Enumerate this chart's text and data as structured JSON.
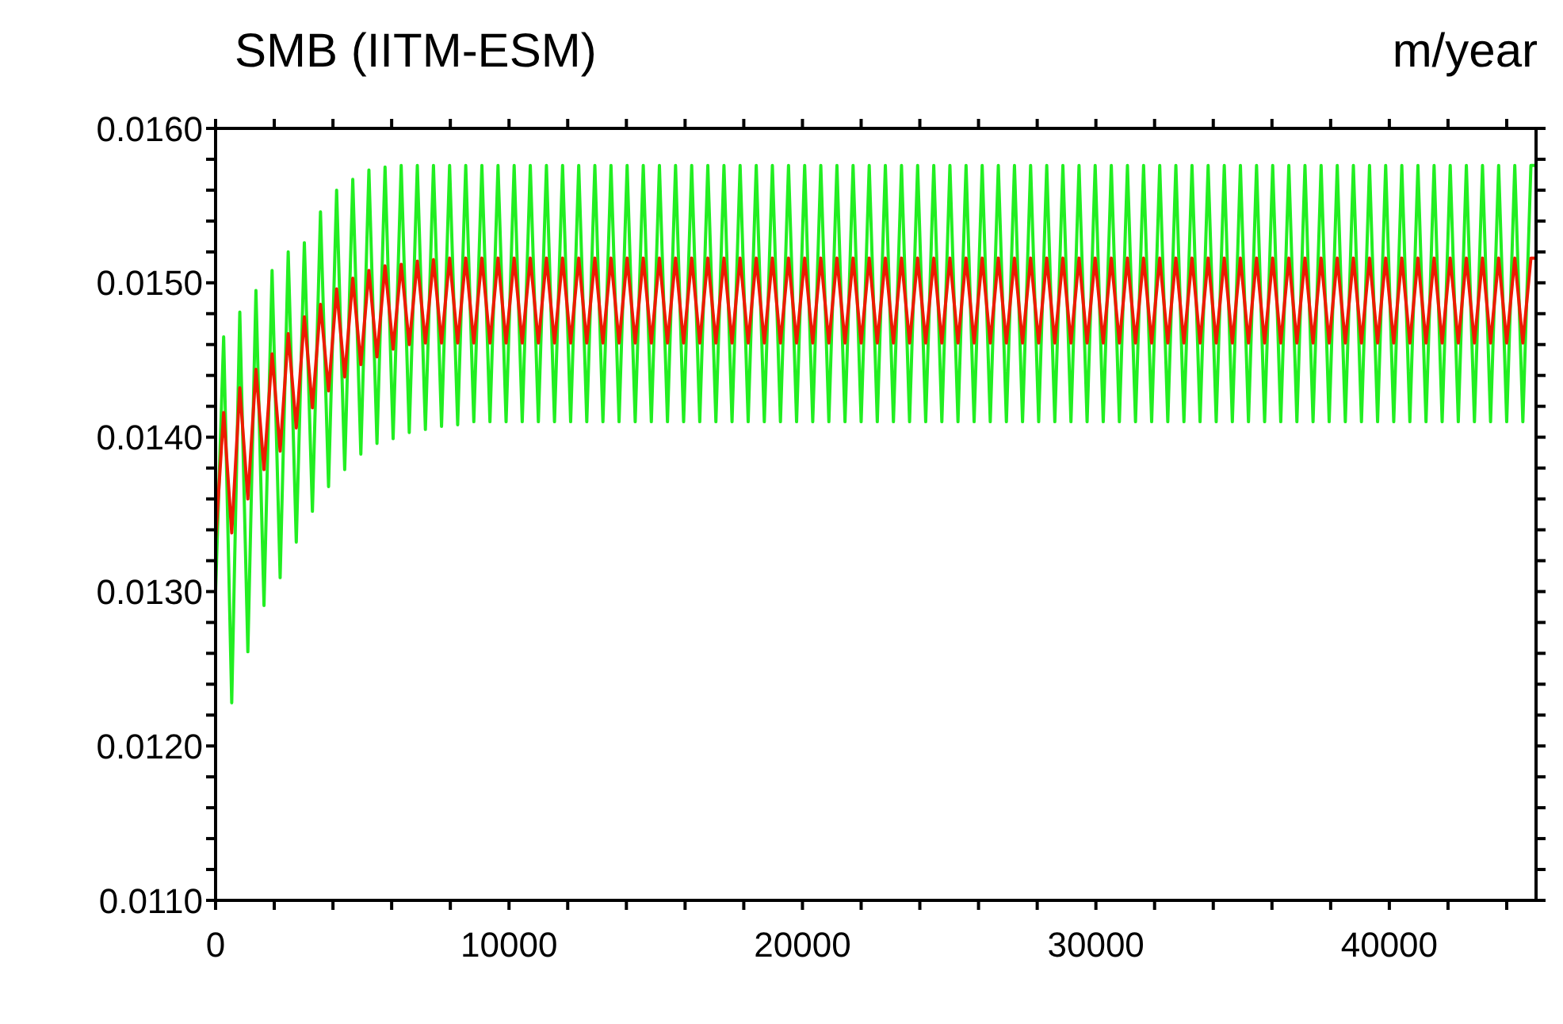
{
  "chart_data": {
    "type": "line",
    "title": "SMB (IITM-ESM)",
    "annotations": [
      "m/year"
    ],
    "xlim": [
      0,
      45000
    ],
    "ylim": [
      0.011,
      0.016
    ],
    "xticks": [
      0,
      {
        "value": 2000,
        "label": null
      },
      {
        "value": 4000,
        "label": null
      },
      {
        "value": 6000,
        "label": null
      },
      {
        "value": 8000,
        "label": null
      },
      10000,
      {
        "value": 12000,
        "label": null
      },
      {
        "value": 14000,
        "label": null
      },
      {
        "value": 16000,
        "label": null
      },
      {
        "value": 18000,
        "label": null
      },
      20000,
      {
        "value": 22000,
        "label": null
      },
      {
        "value": 24000,
        "label": null
      },
      {
        "value": 26000,
        "label": null
      },
      {
        "value": 28000,
        "label": null
      },
      30000,
      {
        "value": 32000,
        "label": null
      },
      {
        "value": 34000,
        "label": null
      },
      {
        "value": 36000,
        "label": null
      },
      {
        "value": 38000,
        "label": null
      },
      40000,
      {
        "value": 42000,
        "label": null
      },
      {
        "value": 44000,
        "label": null
      }
    ],
    "yticks": [
      {
        "value": 0.011,
        "label": "0.0110"
      },
      {
        "value": 0.0112,
        "label": null
      },
      {
        "value": 0.0114,
        "label": null
      },
      {
        "value": 0.0116,
        "label": null
      },
      {
        "value": 0.0118,
        "label": null
      },
      {
        "value": 0.012,
        "label": "0.0120"
      },
      {
        "value": 0.0122,
        "label": null
      },
      {
        "value": 0.0124,
        "label": null
      },
      {
        "value": 0.0126,
        "label": null
      },
      {
        "value": 0.0128,
        "label": null
      },
      {
        "value": 0.013,
        "label": "0.0130"
      },
      {
        "value": 0.0132,
        "label": null
      },
      {
        "value": 0.0134,
        "label": null
      },
      {
        "value": 0.0136,
        "label": null
      },
      {
        "value": 0.0138,
        "label": null
      },
      {
        "value": 0.014,
        "label": "0.0140"
      },
      {
        "value": 0.0142,
        "label": null
      },
      {
        "value": 0.0144,
        "label": null
      },
      {
        "value": 0.0146,
        "label": null
      },
      {
        "value": 0.0148,
        "label": null
      },
      {
        "value": 0.015,
        "label": "0.0150"
      },
      {
        "value": 0.0152,
        "label": null
      },
      {
        "value": 0.0154,
        "label": null
      },
      {
        "value": 0.0156,
        "label": null
      },
      {
        "value": 0.0158,
        "label": null
      },
      {
        "value": 0.016,
        "label": "0.0160"
      }
    ],
    "marker": "none",
    "line_style": "solid",
    "x": [
      0,
      275,
      550,
      825,
      1100,
      1375,
      1650,
      1925,
      2200,
      2475,
      2750,
      3025,
      3300,
      3575,
      3850,
      4125,
      4400,
      4675,
      4950,
      5225,
      5500,
      5775,
      6050,
      6325,
      6600,
      6875,
      7150,
      7425,
      7700,
      7975,
      8250,
      8525,
      8800,
      9075,
      9350,
      9625,
      9900,
      10175,
      10450,
      10725,
      11000,
      11275,
      11550,
      11825,
      12100,
      12375,
      12650,
      12925,
      13200,
      13475,
      13750,
      14025,
      14300,
      14575,
      14850,
      15125,
      15400,
      15675,
      15950,
      16225,
      16500,
      16775,
      17050,
      17325,
      17600,
      17875,
      18150,
      18425,
      18700,
      18975,
      19250,
      19525,
      19800,
      20075,
      20350,
      20625,
      20900,
      21175,
      21450,
      21725,
      22000,
      22275,
      22550,
      22825,
      23100,
      23375,
      23650,
      23925,
      24200,
      24475,
      24750,
      25025,
      25300,
      25575,
      25850,
      26125,
      26400,
      26675,
      26950,
      27225,
      27500,
      27775,
      28050,
      28325,
      28600,
      28875,
      29150,
      29425,
      29700,
      29975,
      30250,
      30525,
      30800,
      31075,
      31350,
      31625,
      31900,
      32175,
      32450,
      32725,
      33000,
      33275,
      33550,
      33825,
      34100,
      34375,
      34650,
      34925,
      35200,
      35475,
      35750,
      36025,
      36300,
      36575,
      36850,
      37125,
      37400,
      37675,
      37950,
      38225,
      38500,
      38775,
      39050,
      39325,
      39600,
      39875,
      40150,
      40425,
      40700,
      40975,
      41250,
      41525,
      41800,
      42075,
      42350,
      42625,
      42900,
      43175,
      43450,
      43725,
      44000,
      44275,
      44550,
      44825,
      45000
    ],
    "series": [
      {
        "color": "#22ee22",
        "values": [
          0.013,
          0.01465,
          0.01228,
          0.01481,
          0.01261,
          0.01495,
          0.01291,
          0.01508,
          0.01309,
          0.0152,
          0.01332,
          0.01526,
          0.01352,
          0.01546,
          0.01368,
          0.0156,
          0.01379,
          0.01567,
          0.01389,
          0.01573,
          0.01396,
          0.01575,
          0.01399,
          0.01576,
          0.01403,
          0.01576,
          0.01405,
          0.01576,
          0.01407,
          0.01576,
          0.01408,
          0.01576,
          0.0141,
          0.01576,
          0.0141,
          0.01576,
          0.0141,
          0.01576,
          0.0141,
          0.01576,
          0.0141,
          0.01576,
          0.0141,
          0.01576,
          0.0141,
          0.01576,
          0.0141,
          0.01576,
          0.0141,
          0.01576,
          0.0141,
          0.01576,
          0.0141,
          0.01576,
          0.0141,
          0.01576,
          0.0141,
          0.01576,
          0.0141,
          0.01576,
          0.0141,
          0.01576,
          0.0141,
          0.01576,
          0.0141,
          0.01576,
          0.0141,
          0.01576,
          0.0141,
          0.01576,
          0.0141,
          0.01576,
          0.0141,
          0.01576,
          0.0141,
          0.01576,
          0.0141,
          0.01576,
          0.0141,
          0.01576,
          0.0141,
          0.01576,
          0.0141,
          0.01576,
          0.0141,
          0.01576,
          0.0141,
          0.01576,
          0.0141,
          0.01576,
          0.0141,
          0.01576,
          0.0141,
          0.01576,
          0.0141,
          0.01576,
          0.0141,
          0.01576,
          0.0141,
          0.01576,
          0.0141,
          0.01576,
          0.0141,
          0.01576,
          0.0141,
          0.01576,
          0.0141,
          0.01576,
          0.0141,
          0.01576,
          0.0141,
          0.01576,
          0.0141,
          0.01576,
          0.0141,
          0.01576,
          0.0141,
          0.01576,
          0.0141,
          0.01576,
          0.0141,
          0.01576,
          0.0141,
          0.01576,
          0.0141,
          0.01576,
          0.0141,
          0.01576,
          0.0141,
          0.01576,
          0.0141,
          0.01576,
          0.0141,
          0.01576,
          0.0141,
          0.01576,
          0.0141,
          0.01576,
          0.0141,
          0.01576,
          0.0141,
          0.01576,
          0.0141,
          0.01576,
          0.0141,
          0.01576,
          0.0141,
          0.01576,
          0.0141,
          0.01576,
          0.0141,
          0.01576,
          0.0141,
          0.01576,
          0.0141,
          0.01576,
          0.0141,
          0.01576,
          0.0141,
          0.01576,
          0.0141,
          0.01576,
          0.0141,
          0.01576,
          0.01576
        ]
      },
      {
        "color": "#ee1a00",
        "values": [
          0.01333,
          0.01416,
          0.01338,
          0.01432,
          0.0136,
          0.01444,
          0.01379,
          0.01454,
          0.01391,
          0.01467,
          0.01406,
          0.01478,
          0.01419,
          0.01486,
          0.0143,
          0.01496,
          0.01439,
          0.01503,
          0.01447,
          0.01508,
          0.01452,
          0.01511,
          0.01457,
          0.01512,
          0.0146,
          0.01514,
          0.01461,
          0.01515,
          0.01461,
          0.01516,
          0.01461,
          0.01516,
          0.01461,
          0.01516,
          0.01461,
          0.01516,
          0.01461,
          0.01516,
          0.01461,
          0.01516,
          0.01461,
          0.01516,
          0.01461,
          0.01516,
          0.01461,
          0.01516,
          0.01461,
          0.01516,
          0.01461,
          0.01516,
          0.01461,
          0.01516,
          0.01461,
          0.01516,
          0.01461,
          0.01516,
          0.01461,
          0.01516,
          0.01461,
          0.01516,
          0.01461,
          0.01516,
          0.01461,
          0.01516,
          0.01461,
          0.01516,
          0.01461,
          0.01516,
          0.01461,
          0.01516,
          0.01461,
          0.01516,
          0.01461,
          0.01516,
          0.01461,
          0.01516,
          0.01461,
          0.01516,
          0.01461,
          0.01516,
          0.01461,
          0.01516,
          0.01461,
          0.01516,
          0.01461,
          0.01516,
          0.01461,
          0.01516,
          0.01461,
          0.01516,
          0.01461,
          0.01516,
          0.01461,
          0.01516,
          0.01461,
          0.01516,
          0.01461,
          0.01516,
          0.01461,
          0.01516,
          0.01461,
          0.01516,
          0.01461,
          0.01516,
          0.01461,
          0.01516,
          0.01461,
          0.01516,
          0.01461,
          0.01516,
          0.01461,
          0.01516,
          0.01461,
          0.01516,
          0.01461,
          0.01516,
          0.01461,
          0.01516,
          0.01461,
          0.01516,
          0.01461,
          0.01516,
          0.01461,
          0.01516,
          0.01461,
          0.01516,
          0.01461,
          0.01516,
          0.01461,
          0.01516,
          0.01461,
          0.01516,
          0.01461,
          0.01516,
          0.01461,
          0.01516,
          0.01461,
          0.01516,
          0.01461,
          0.01516,
          0.01461,
          0.01516,
          0.01461,
          0.01516,
          0.01461,
          0.01516,
          0.01461,
          0.01516,
          0.01461,
          0.01516,
          0.01461,
          0.01516,
          0.01461,
          0.01516,
          0.01461,
          0.01516,
          0.01461,
          0.01516,
          0.01461,
          0.01516,
          0.01461,
          0.01516,
          0.01461,
          0.01516,
          0.01516
        ]
      }
    ]
  }
}
